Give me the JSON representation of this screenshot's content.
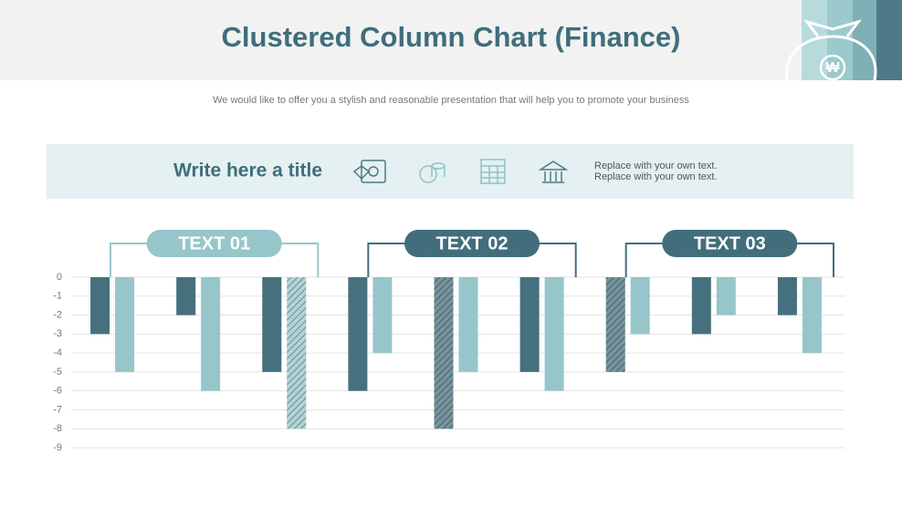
{
  "header": {
    "title": "Clustered Column Chart (Finance)",
    "subtitle": "We would like to offer you a stylish and reasonable presentation that will help you to promote your business"
  },
  "banner": {
    "title": "Write here a title",
    "lines": [
      "Replace with your own text.",
      "Replace with your own text."
    ]
  },
  "chart_data": {
    "type": "bar",
    "categories": [
      null,
      null,
      null,
      null,
      null,
      null,
      null,
      null,
      null
    ],
    "series": [
      {
        "color": "#46707d",
        "values": [
          -3,
          -2,
          -5,
          -6,
          -8,
          -5,
          -5,
          -3,
          -2
        ],
        "hatched": [
          4,
          6
        ]
      },
      {
        "color": "#96c6ca",
        "values": [
          -5,
          -6,
          -8,
          -4,
          -5,
          -6,
          -3,
          -2,
          -4
        ],
        "hatched": [
          2
        ]
      }
    ],
    "groups": [
      {
        "label": "TEXT 01",
        "color": "#96c6ca"
      },
      {
        "label": "TEXT 02",
        "color": "#426e7c"
      },
      {
        "label": "TEXT 03",
        "color": "#426e7c"
      }
    ],
    "ylim": [
      -9,
      0
    ],
    "yticks": [
      0,
      -1,
      -2,
      -3,
      -4,
      -5,
      -6,
      -7,
      -8,
      -9
    ],
    "grid": true
  }
}
